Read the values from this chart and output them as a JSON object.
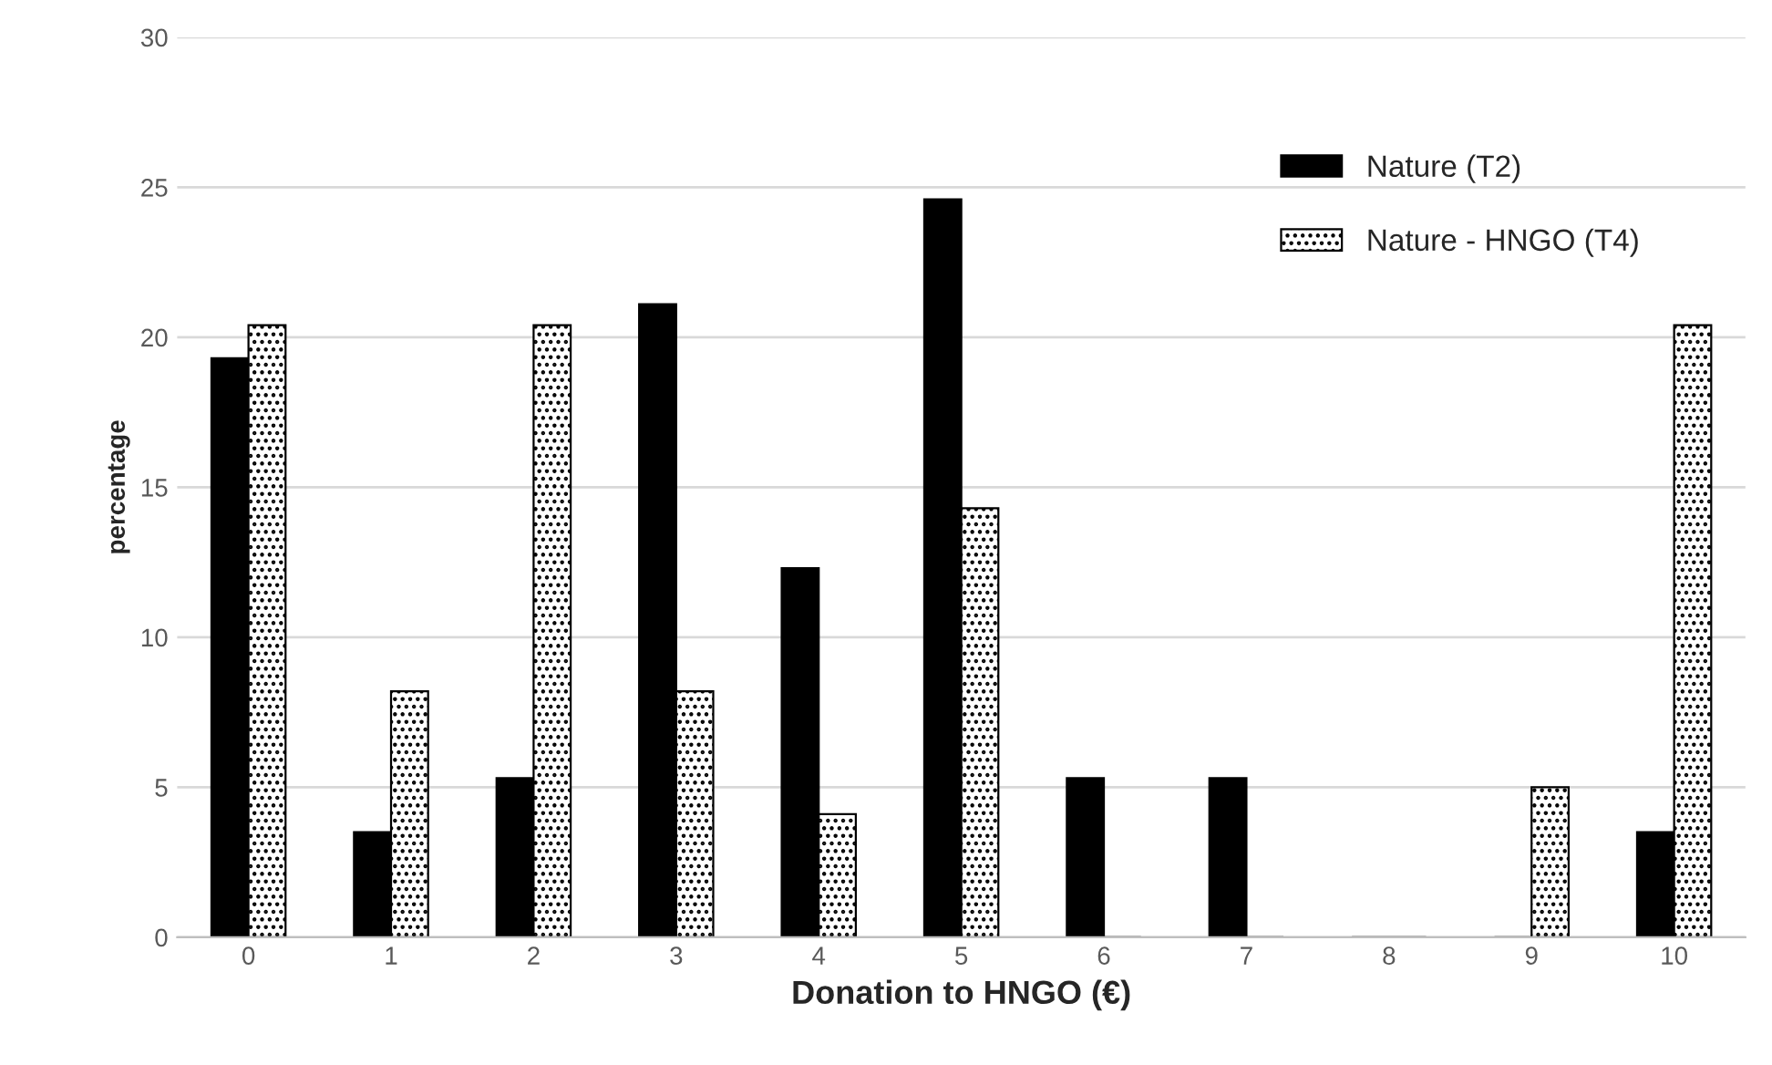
{
  "chart_data": {
    "type": "bar",
    "xlabel": "Donation to HNGO (€)",
    "ylabel": "percentage",
    "categories": [
      "0",
      "1",
      "2",
      "3",
      "4",
      "5",
      "6",
      "7",
      "8",
      "9",
      "10"
    ],
    "series": [
      {
        "name": "Nature (T2)",
        "color": "#000000",
        "values": [
          19.3,
          3.5,
          5.3,
          21.1,
          12.3,
          24.6,
          5.3,
          5.3,
          0,
          0,
          3.5
        ]
      },
      {
        "name": "Nature - HNGO (T4)",
        "color": "#000000",
        "values": [
          20.4,
          8.2,
          20.4,
          8.2,
          4.1,
          14.3,
          0,
          0,
          0,
          5.0,
          20.4
        ]
      }
    ],
    "ylim": [
      0,
      30
    ],
    "yticks": [
      0,
      5,
      10,
      15,
      20,
      25,
      30
    ],
    "grid": "y",
    "legend": "top right"
  }
}
